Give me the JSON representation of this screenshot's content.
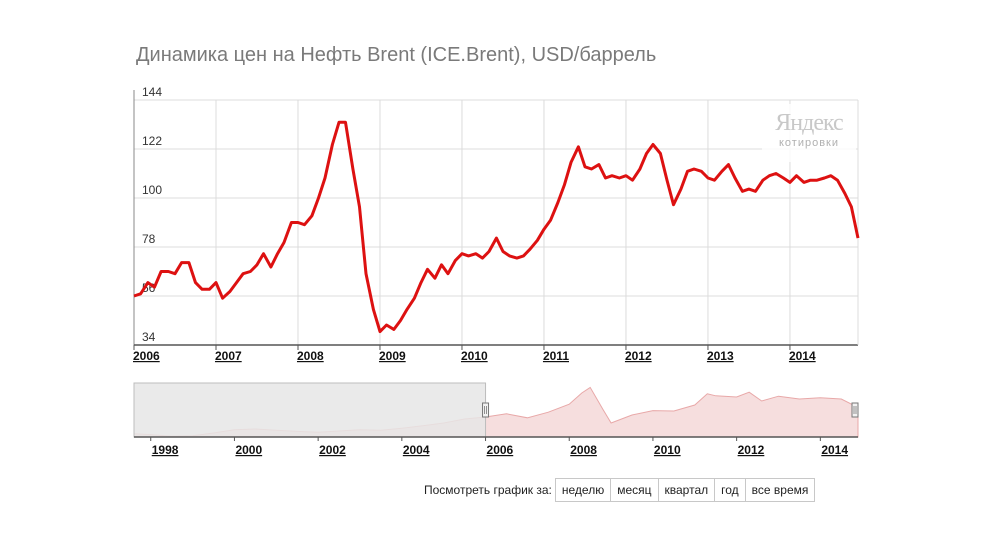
{
  "title": "Динамика цен на Нефть Brent (ICE.Brent), USD/баррель",
  "watermark": {
    "logo": "Яндекс",
    "sub": "котировки"
  },
  "chart_data": {
    "type": "line",
    "title": "Динамика цен на Нефть Brent (ICE.Brent), USD/баррель",
    "xlabel": "",
    "ylabel": "",
    "ylim": [
      34,
      144
    ],
    "xlim": [
      2006.0,
      2014.83
    ],
    "y_ticks": [
      "144",
      "122",
      "100",
      "78",
      "56",
      "34"
    ],
    "x_ticks": [
      "2006",
      "2007",
      "2008",
      "2009",
      "2010",
      "2011",
      "2012",
      "2013",
      "2014"
    ],
    "grid": true,
    "line_color": "#dd1111",
    "series": [
      {
        "x": [
          2006.0,
          2006.08,
          2006.17,
          2006.25,
          2006.33,
          2006.42,
          2006.5,
          2006.58,
          2006.67,
          2006.75,
          2006.83,
          2006.92,
          2007.0,
          2007.08,
          2007.17,
          2007.25,
          2007.33,
          2007.42,
          2007.5,
          2007.58,
          2007.67,
          2007.75,
          2007.83,
          2007.92,
          2008.0,
          2008.08,
          2008.17,
          2008.25,
          2008.33,
          2008.42,
          2008.5,
          2008.58,
          2008.67,
          2008.75,
          2008.83,
          2008.92,
          2009.0,
          2009.08,
          2009.17,
          2009.25,
          2009.33,
          2009.42,
          2009.5,
          2009.58,
          2009.67,
          2009.75,
          2009.83,
          2009.92,
          2010.0,
          2010.08,
          2010.17,
          2010.25,
          2010.33,
          2010.42,
          2010.5,
          2010.58,
          2010.67,
          2010.75,
          2010.83,
          2010.92,
          2011.0,
          2011.08,
          2011.17,
          2011.25,
          2011.33,
          2011.42,
          2011.5,
          2011.58,
          2011.67,
          2011.75,
          2011.83,
          2011.92,
          2012.0,
          2012.08,
          2012.17,
          2012.25,
          2012.33,
          2012.42,
          2012.5,
          2012.58,
          2012.67,
          2012.75,
          2012.83,
          2012.92,
          2013.0,
          2013.08,
          2013.17,
          2013.25,
          2013.33,
          2013.42,
          2013.5,
          2013.58,
          2013.67,
          2013.75,
          2013.83,
          2013.92,
          2014.0,
          2014.08,
          2014.17,
          2014.25,
          2014.33,
          2014.42,
          2014.5,
          2014.58,
          2014.67,
          2014.75,
          2014.83
        ],
        "values": [
          56,
          57,
          62,
          60,
          67,
          67,
          66,
          71,
          71,
          62,
          59,
          59,
          62,
          55,
          58,
          62,
          66,
          67,
          70,
          75,
          69,
          75,
          80,
          89,
          89,
          88,
          92,
          100,
          109,
          124,
          134,
          134,
          113,
          96,
          66,
          50,
          40,
          43,
          41,
          45,
          50,
          55,
          62,
          68,
          64,
          70,
          66,
          72,
          75,
          74,
          75,
          73,
          76,
          82,
          76,
          74,
          73,
          74,
          77,
          81,
          86,
          90,
          98,
          106,
          116,
          123,
          114,
          113,
          115,
          109,
          110,
          109,
          110,
          108,
          113,
          120,
          124,
          120,
          108,
          97,
          104,
          112,
          113,
          112,
          109,
          108,
          112,
          115,
          109,
          103,
          104,
          103,
          108,
          110,
          111,
          109,
          107,
          110,
          107,
          108,
          108,
          109,
          110,
          108,
          102,
          96,
          82
        ]
      }
    ]
  },
  "navigator": {
    "x_ticks": [
      "1998",
      "2000",
      "2002",
      "2004",
      "2006",
      "2008",
      "2010",
      "2012",
      "2014"
    ],
    "xlim": [
      1997.6,
      2014.9
    ],
    "ylim": [
      10,
      140
    ],
    "selection_start": 2006.0,
    "selection_end": 2014.9,
    "area_fill": "#f6dede",
    "area_stroke": "#e8a8a8",
    "shade_color": "#e6e6e6",
    "x": [
      1997.6,
      1998.0,
      1998.5,
      1999.0,
      1999.5,
      2000.0,
      2000.5,
      2001.0,
      2001.5,
      2002.0,
      2002.5,
      2003.0,
      2003.5,
      2004.0,
      2004.5,
      2005.0,
      2005.5,
      2006.0,
      2006.5,
      2007.0,
      2007.5,
      2008.0,
      2008.3,
      2008.5,
      2008.8,
      2009.0,
      2009.5,
      2010.0,
      2010.5,
      2011.0,
      2011.3,
      2011.5,
      2012.0,
      2012.3,
      2012.6,
      2013.0,
      2013.5,
      2014.0,
      2014.5,
      2014.9
    ],
    "values": [
      18,
      16,
      12,
      13,
      20,
      28,
      30,
      27,
      24,
      22,
      25,
      28,
      27,
      32,
      38,
      45,
      55,
      60,
      68,
      58,
      72,
      92,
      120,
      134,
      80,
      45,
      65,
      76,
      75,
      90,
      118,
      113,
      110,
      122,
      100,
      112,
      105,
      108,
      105,
      84
    ]
  },
  "period_controls": {
    "label": "Посмотреть график за:",
    "buttons": [
      "неделю",
      "месяц",
      "квартал",
      "год",
      "все время"
    ]
  }
}
